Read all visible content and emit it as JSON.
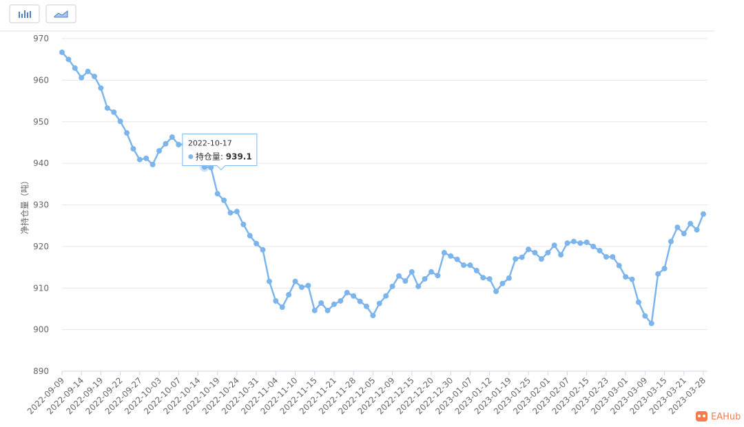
{
  "chart_data": {
    "type": "line",
    "y_label": "净持仓量（吨）",
    "categories": [
      "2022-09-09",
      null,
      null,
      "2022-09-14",
      null,
      null,
      "2022-09-19",
      null,
      null,
      "2022-09-22",
      null,
      null,
      "2022-09-27",
      null,
      null,
      "2022-10-03",
      null,
      null,
      "2022-10-07",
      null,
      null,
      "2022-10-14",
      "2022-10-17",
      null,
      "2022-10-19",
      null,
      null,
      "2022-10-24",
      null,
      null,
      "2022-10-31",
      null,
      null,
      "2022-11-04",
      null,
      null,
      "2022-11-10",
      null,
      null,
      "2022-11-15",
      null,
      null,
      "2022-11-21",
      null,
      null,
      "2022-11-28",
      null,
      null,
      "2022-12-05",
      null,
      null,
      "2022-12-09",
      null,
      null,
      "2022-12-15",
      null,
      null,
      "2022-12-20",
      null,
      null,
      "2022-12-30",
      null,
      null,
      "2023-01-07",
      null,
      null,
      "2023-01-12",
      null,
      null,
      "2023-01-19",
      null,
      null,
      "2023-01-25",
      null,
      null,
      "2023-02-01",
      null,
      null,
      "2023-02-07",
      null,
      null,
      "2023-02-15",
      null,
      null,
      "2023-02-23",
      null,
      null,
      "2023-03-01",
      null,
      null,
      "2023-03-09",
      null,
      null,
      "2023-03-15",
      null,
      null,
      "2023-03-21",
      null,
      null,
      "2023-03-28"
    ],
    "series": [
      {
        "name": "持仓量",
        "color": "#7cb5ec",
        "values": [
          966.7,
          965.0,
          962.9,
          960.6,
          962.1,
          960.9,
          958.1,
          953.3,
          952.3,
          950.1,
          947.3,
          943.5,
          940.9,
          941.2,
          939.7,
          943.0,
          944.7,
          946.3,
          944.5,
          944.6,
          943.7,
          941.9,
          939.1,
          939.0,
          932.7,
          931.1,
          928.1,
          928.4,
          925.3,
          922.6,
          920.7,
          919.2,
          911.6,
          906.9,
          905.4,
          908.4,
          911.6,
          910.2,
          910.6,
          904.6,
          906.4,
          904.6,
          906.1,
          906.9,
          908.9,
          908.1,
          906.8,
          905.6,
          903.4,
          906.3,
          908.1,
          910.4,
          912.9,
          911.7,
          913.9,
          910.4,
          912.2,
          913.9,
          913.0,
          918.5,
          917.7,
          916.9,
          915.5,
          915.5,
          914.2,
          912.5,
          912.2,
          909.2,
          911.1,
          912.4,
          917.0,
          917.4,
          919.3,
          918.5,
          917.0,
          918.5,
          920.3,
          918.0,
          920.8,
          921.2,
          920.8,
          921.0,
          920.0,
          919.0,
          917.5,
          917.5,
          915.4,
          912.7,
          912.1,
          906.6,
          903.3,
          901.5,
          913.4,
          914.7,
          921.2,
          924.6,
          923.1,
          925.5,
          924.0,
          927.8
        ]
      }
    ],
    "ylim": [
      890,
      970
    ],
    "yticks": [
      890,
      900,
      910,
      920,
      930,
      940,
      950,
      960,
      970
    ],
    "grid": true,
    "tooltip": {
      "index": 22,
      "separator": ": "
    }
  },
  "brand": "EAHub"
}
